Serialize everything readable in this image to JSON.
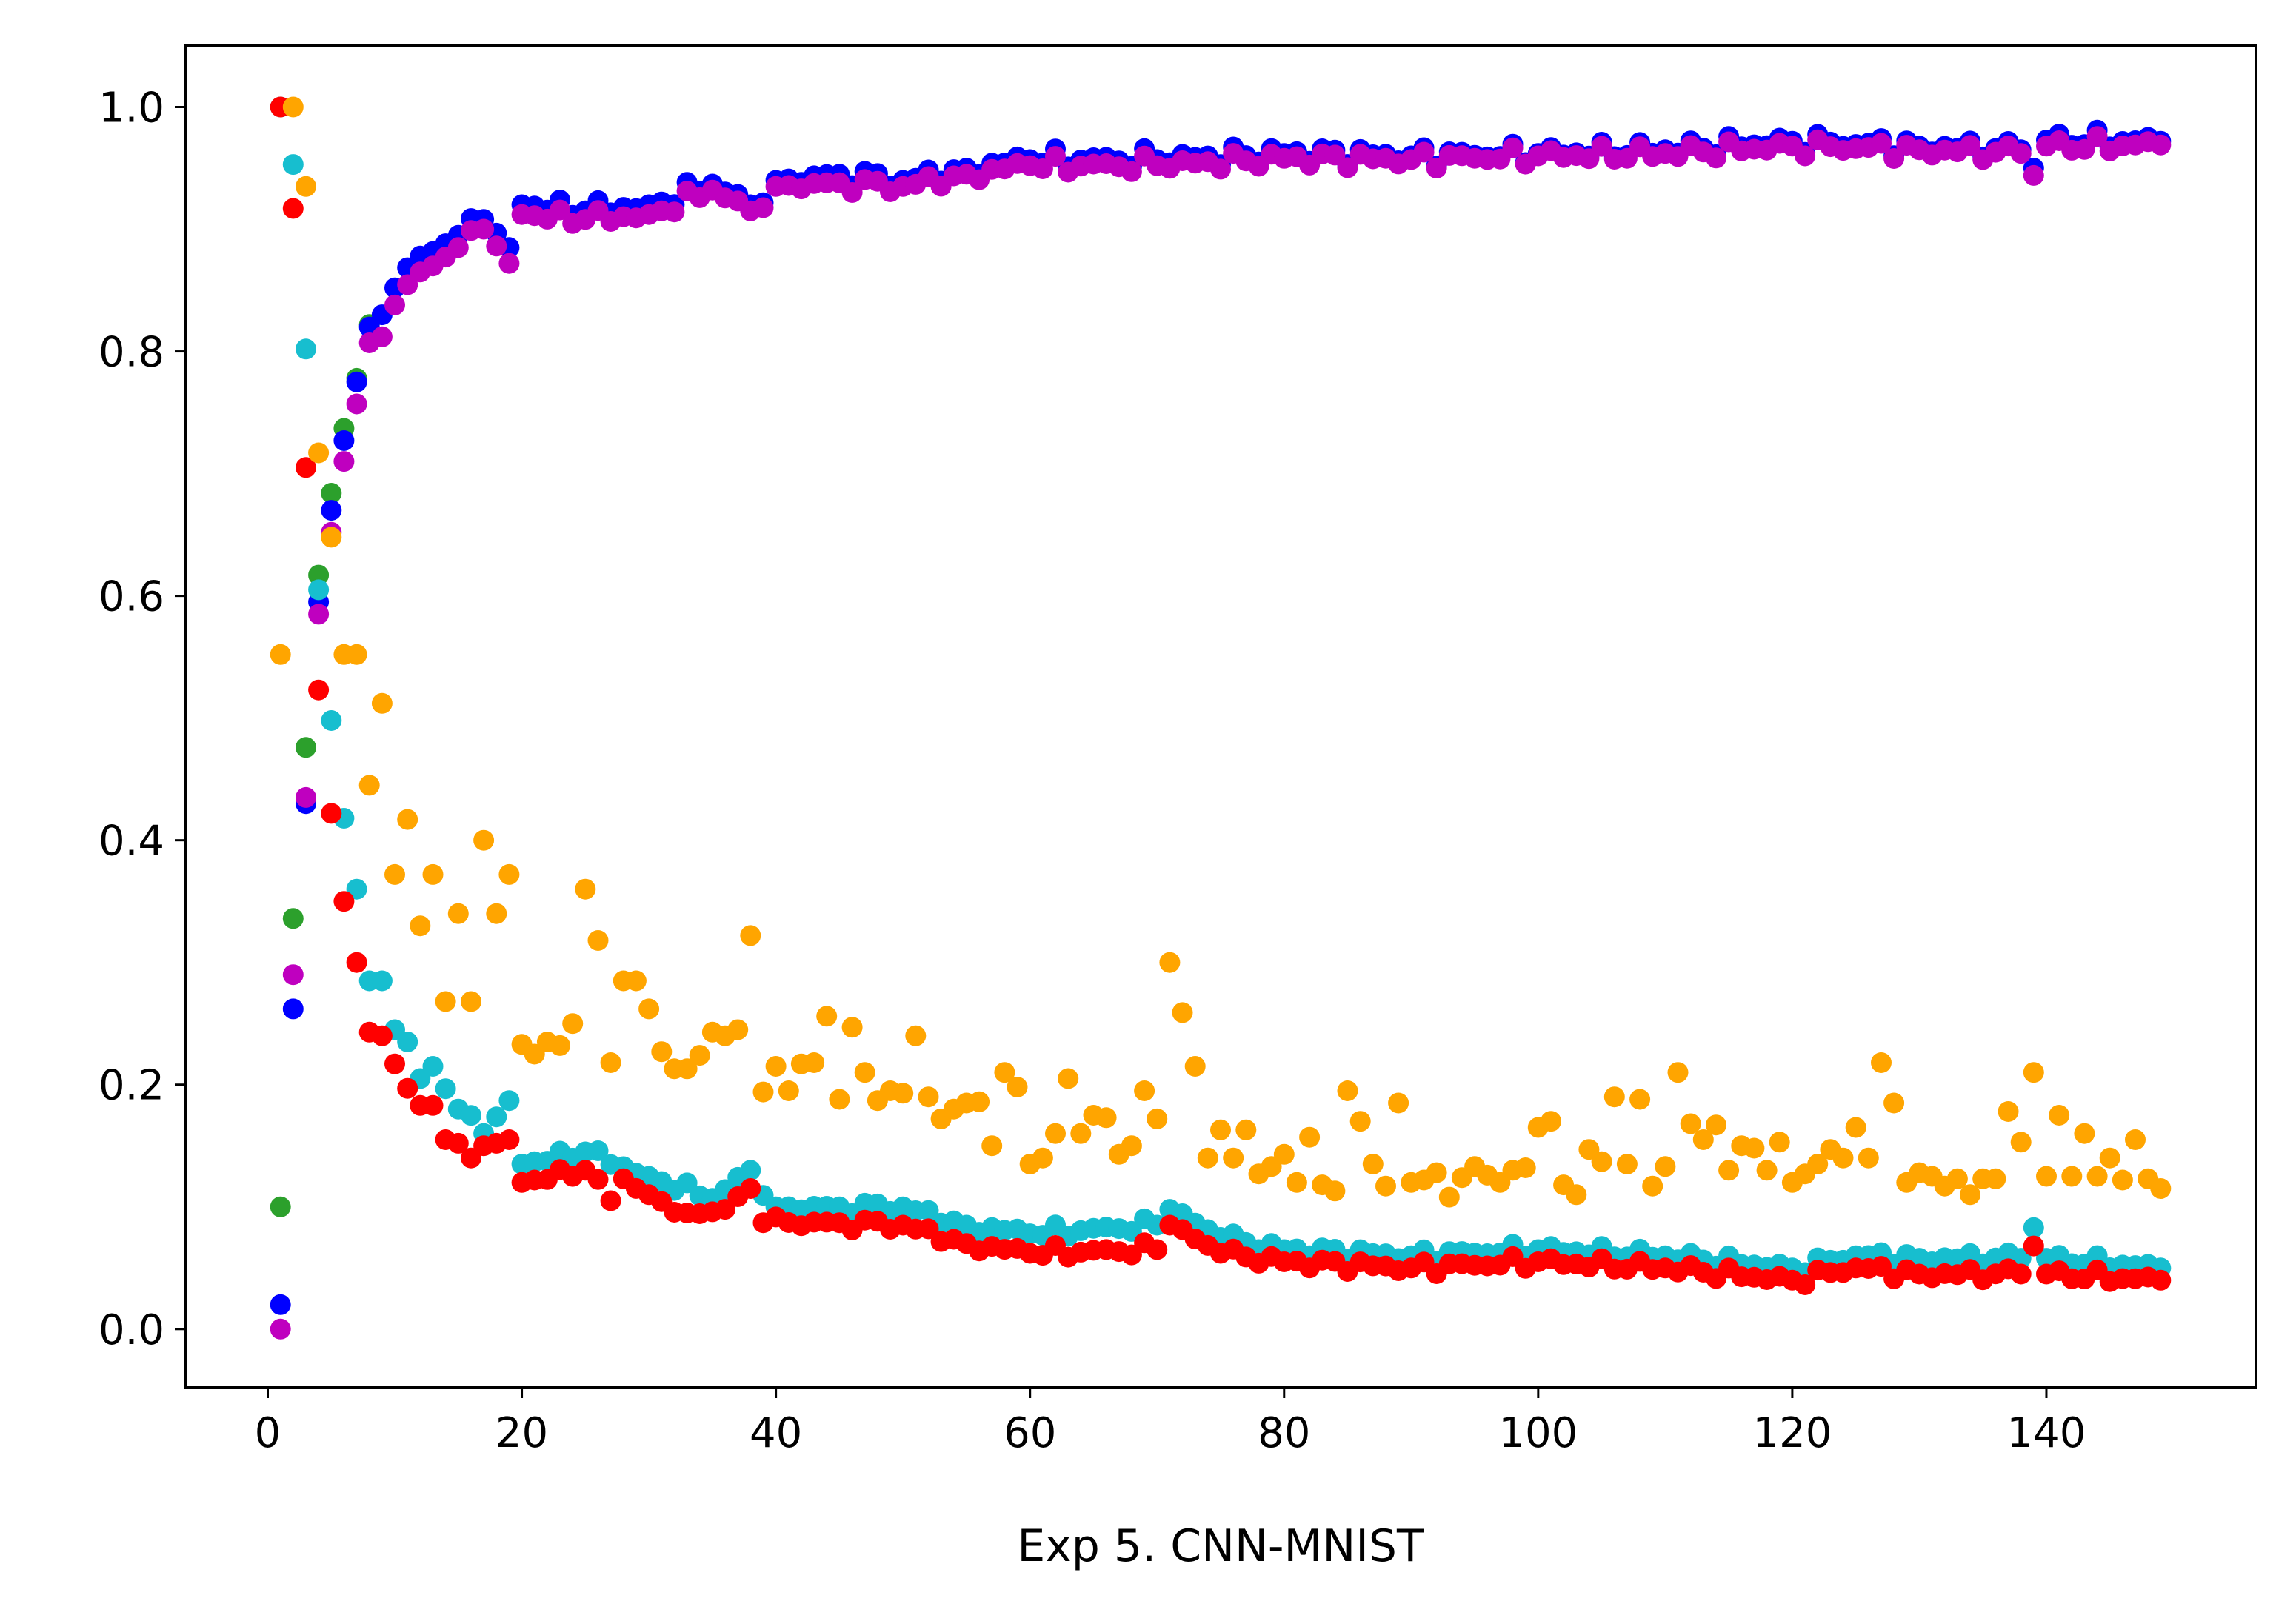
{
  "chart_data": {
    "type": "scatter",
    "title": "",
    "xlabel": "Exp 5. CNN-MNIST",
    "ylabel": "",
    "xlim": [
      -6.5,
      156.5
    ],
    "ylim": [
      -0.048,
      1.05
    ],
    "x_ticks": [
      0,
      20,
      40,
      60,
      80,
      100,
      120,
      140
    ],
    "y_ticks": [
      0.0,
      0.2,
      0.4,
      0.6,
      0.8,
      1.0
    ],
    "x_tick_labels": [
      "0",
      "20",
      "40",
      "60",
      "80",
      "100",
      "120",
      "140"
    ],
    "y_tick_labels": [
      "0.0",
      "0.2",
      "0.4",
      "0.6",
      "0.8",
      "1.0"
    ],
    "grid": false,
    "legend": false,
    "series": [
      {
        "color": "#2ca02c",
        "points": [
          [
            1,
            0.1
          ],
          [
            2,
            0.336
          ],
          [
            3,
            0.476
          ],
          [
            4,
            0.617
          ],
          [
            5,
            0.684
          ],
          [
            6,
            0.737
          ],
          [
            7,
            0.778
          ],
          [
            8,
            0.822
          ]
        ]
      },
      {
        "color": "#0000ff",
        "anchors": [
          [
            1,
            0.02
          ],
          [
            2,
            0.262
          ],
          [
            3,
            0.43
          ],
          [
            4,
            0.595
          ],
          [
            5,
            0.67
          ],
          [
            6,
            0.727
          ],
          [
            7,
            0.775
          ],
          [
            8,
            0.82
          ],
          [
            9,
            0.83
          ],
          [
            10,
            0.852
          ],
          [
            12,
            0.878
          ],
          [
            15,
            0.895
          ],
          [
            17,
            0.908
          ],
          [
            19,
            0.885
          ],
          [
            20,
            0.92
          ],
          [
            25,
            0.915
          ],
          [
            30,
            0.92
          ],
          [
            35,
            0.937
          ],
          [
            38,
            0.92
          ],
          [
            40,
            0.94
          ],
          [
            45,
            0.945
          ],
          [
            50,
            0.94
          ],
          [
            55,
            0.95
          ],
          [
            60,
            0.957
          ],
          [
            70,
            0.957
          ],
          [
            80,
            0.962
          ],
          [
            90,
            0.96
          ],
          [
            100,
            0.962
          ],
          [
            110,
            0.965
          ],
          [
            120,
            0.972
          ],
          [
            130,
            0.968
          ],
          [
            138,
            0.965
          ],
          [
            139,
            0.95
          ],
          [
            140,
            0.973
          ],
          [
            149,
            0.972
          ]
        ],
        "jitter": 0.009
      },
      {
        "color": "#bf00bf",
        "anchors": [
          [
            1,
            0.0
          ],
          [
            2,
            0.29
          ],
          [
            3,
            0.435
          ],
          [
            4,
            0.585
          ],
          [
            5,
            0.652
          ],
          [
            6,
            0.71
          ],
          [
            7,
            0.757
          ],
          [
            8,
            0.807
          ],
          [
            9,
            0.812
          ],
          [
            10,
            0.838
          ],
          [
            12,
            0.865
          ],
          [
            15,
            0.885
          ],
          [
            17,
            0.9
          ],
          [
            19,
            0.872
          ],
          [
            20,
            0.912
          ],
          [
            25,
            0.908
          ],
          [
            30,
            0.912
          ],
          [
            35,
            0.932
          ],
          [
            38,
            0.915
          ],
          [
            40,
            0.935
          ],
          [
            45,
            0.938
          ],
          [
            50,
            0.935
          ],
          [
            55,
            0.945
          ],
          [
            60,
            0.952
          ],
          [
            70,
            0.952
          ],
          [
            80,
            0.958
          ],
          [
            90,
            0.957
          ],
          [
            100,
            0.96
          ],
          [
            110,
            0.962
          ],
          [
            120,
            0.968
          ],
          [
            130,
            0.965
          ],
          [
            138,
            0.962
          ],
          [
            139,
            0.944
          ],
          [
            140,
            0.968
          ],
          [
            149,
            0.969
          ]
        ],
        "jitter": 0.008
      },
      {
        "color": "#17becf",
        "anchors": [
          [
            1,
            1.0
          ],
          [
            2,
            0.953
          ],
          [
            3,
            0.802
          ],
          [
            4,
            0.605
          ],
          [
            5,
            0.498
          ],
          [
            6,
            0.418
          ],
          [
            7,
            0.36
          ],
          [
            8,
            0.285
          ],
          [
            9,
            0.285
          ],
          [
            10,
            0.245
          ],
          [
            11,
            0.235
          ],
          [
            12,
            0.205
          ],
          [
            13,
            0.215
          ],
          [
            15,
            0.18
          ],
          [
            17,
            0.16
          ],
          [
            19,
            0.187
          ],
          [
            20,
            0.135
          ],
          [
            25,
            0.145
          ],
          [
            30,
            0.125
          ],
          [
            35,
            0.107
          ],
          [
            38,
            0.13
          ],
          [
            40,
            0.1
          ],
          [
            45,
            0.1
          ],
          [
            50,
            0.1
          ],
          [
            55,
            0.085
          ],
          [
            60,
            0.078
          ],
          [
            70,
            0.085
          ],
          [
            71,
            0.098
          ],
          [
            75,
            0.075
          ],
          [
            80,
            0.065
          ],
          [
            90,
            0.06
          ],
          [
            100,
            0.065
          ],
          [
            110,
            0.06
          ],
          [
            120,
            0.05
          ],
          [
            125,
            0.06
          ],
          [
            130,
            0.058
          ],
          [
            138,
            0.058
          ],
          [
            139,
            0.083
          ],
          [
            140,
            0.058
          ],
          [
            149,
            0.05
          ]
        ],
        "jitter": 0.006
      },
      {
        "color": "#ff0000",
        "anchors": [
          [
            1,
            1.0
          ],
          [
            2,
            0.917
          ],
          [
            3,
            0.705
          ],
          [
            4,
            0.523
          ],
          [
            5,
            0.422
          ],
          [
            6,
            0.35
          ],
          [
            7,
            0.3
          ],
          [
            8,
            0.243
          ],
          [
            9,
            0.24
          ],
          [
            10,
            0.217
          ],
          [
            11,
            0.197
          ],
          [
            12,
            0.183
          ],
          [
            13,
            0.183
          ],
          [
            14,
            0.155
          ],
          [
            15,
            0.152
          ],
          [
            16,
            0.14
          ],
          [
            17,
            0.15
          ],
          [
            18,
            0.152
          ],
          [
            19,
            0.155
          ],
          [
            20,
            0.12
          ],
          [
            25,
            0.13
          ],
          [
            27,
            0.105
          ],
          [
            28,
            0.123
          ],
          [
            30,
            0.11
          ],
          [
            33,
            0.095
          ],
          [
            36,
            0.098
          ],
          [
            38,
            0.115
          ],
          [
            39,
            0.087
          ],
          [
            45,
            0.087
          ],
          [
            50,
            0.085
          ],
          [
            55,
            0.07
          ],
          [
            60,
            0.062
          ],
          [
            70,
            0.065
          ],
          [
            71,
            0.085
          ],
          [
            75,
            0.062
          ],
          [
            80,
            0.055
          ],
          [
            90,
            0.05
          ],
          [
            100,
            0.055
          ],
          [
            110,
            0.05
          ],
          [
            120,
            0.04
          ],
          [
            125,
            0.05
          ],
          [
            130,
            0.045
          ],
          [
            138,
            0.045
          ],
          [
            139,
            0.068
          ],
          [
            140,
            0.045
          ],
          [
            149,
            0.04
          ]
        ],
        "jitter": 0.006
      },
      {
        "color": "#ffa500",
        "points": [
          [
            1,
            0.552
          ],
          [
            2,
            1.0
          ],
          [
            3,
            0.935
          ],
          [
            4,
            0.717
          ],
          [
            5,
            0.648
          ],
          [
            6,
            0.552
          ],
          [
            7,
            0.552
          ],
          [
            8,
            0.445
          ],
          [
            9,
            0.512
          ],
          [
            10,
            0.372
          ],
          [
            11,
            0.417
          ],
          [
            12,
            0.33
          ],
          [
            13,
            0.372
          ],
          [
            14,
            0.268
          ],
          [
            15,
            0.34
          ],
          [
            16,
            0.268
          ],
          [
            17,
            0.4
          ],
          [
            18,
            0.34
          ],
          [
            19,
            0.372
          ],
          [
            20,
            0.233
          ],
          [
            21,
            0.225
          ],
          [
            22,
            0.235
          ],
          [
            23,
            0.232
          ],
          [
            24,
            0.25
          ],
          [
            25,
            0.36
          ],
          [
            26,
            0.318
          ],
          [
            27,
            0.218
          ],
          [
            28,
            0.285
          ],
          [
            29,
            0.285
          ],
          [
            30,
            0.262
          ],
          [
            31,
            0.227
          ],
          [
            32,
            0.213
          ],
          [
            33,
            0.213
          ],
          [
            34,
            0.224
          ],
          [
            35,
            0.243
          ],
          [
            36,
            0.24
          ],
          [
            37,
            0.245
          ],
          [
            38,
            0.322
          ],
          [
            39,
            0.194
          ],
          [
            40,
            0.215
          ],
          [
            41,
            0.195
          ],
          [
            42,
            0.217
          ],
          [
            43,
            0.218
          ],
          [
            44,
            0.256
          ],
          [
            45,
            0.188
          ],
          [
            46,
            0.247
          ],
          [
            47,
            0.21
          ],
          [
            48,
            0.187
          ],
          [
            49,
            0.195
          ],
          [
            50,
            0.193
          ],
          [
            51,
            0.24
          ],
          [
            52,
            0.19
          ],
          [
            53,
            0.172
          ],
          [
            54,
            0.18
          ],
          [
            55,
            0.185
          ],
          [
            56,
            0.186
          ],
          [
            57,
            0.15
          ],
          [
            58,
            0.21
          ],
          [
            59,
            0.198
          ],
          [
            60,
            0.135
          ],
          [
            61,
            0.14
          ],
          [
            62,
            0.16
          ],
          [
            63,
            0.205
          ],
          [
            64,
            0.16
          ],
          [
            65,
            0.175
          ],
          [
            66,
            0.173
          ],
          [
            67,
            0.143
          ],
          [
            68,
            0.15
          ],
          [
            69,
            0.195
          ],
          [
            70,
            0.172
          ],
          [
            71,
            0.3
          ],
          [
            72,
            0.259
          ],
          [
            73,
            0.215
          ],
          [
            74,
            0.14
          ],
          [
            75,
            0.163
          ],
          [
            76,
            0.14
          ],
          [
            77,
            0.163
          ],
          [
            78,
            0.127
          ],
          [
            79,
            0.133
          ],
          [
            80,
            0.143
          ],
          [
            81,
            0.12
          ],
          [
            82,
            0.157
          ],
          [
            83,
            0.118
          ],
          [
            84,
            0.113
          ],
          [
            85,
            0.195
          ],
          [
            86,
            0.17
          ],
          [
            87,
            0.135
          ],
          [
            88,
            0.117
          ],
          [
            89,
            0.185
          ],
          [
            90,
            0.12
          ],
          [
            91,
            0.122
          ],
          [
            92,
            0.128
          ],
          [
            93,
            0.108
          ],
          [
            94,
            0.124
          ],
          [
            95,
            0.133
          ],
          [
            96,
            0.126
          ],
          [
            97,
            0.12
          ],
          [
            98,
            0.13
          ],
          [
            99,
            0.132
          ],
          [
            100,
            0.165
          ],
          [
            101,
            0.17
          ],
          [
            102,
            0.118
          ],
          [
            103,
            0.11
          ],
          [
            104,
            0.147
          ],
          [
            105,
            0.137
          ],
          [
            106,
            0.19
          ],
          [
            107,
            0.135
          ],
          [
            108,
            0.188
          ],
          [
            109,
            0.117
          ],
          [
            110,
            0.133
          ],
          [
            111,
            0.21
          ],
          [
            112,
            0.168
          ],
          [
            113,
            0.155
          ],
          [
            114,
            0.167
          ],
          [
            115,
            0.13
          ],
          [
            116,
            0.15
          ],
          [
            117,
            0.148
          ],
          [
            118,
            0.13
          ],
          [
            119,
            0.153
          ],
          [
            120,
            0.12
          ],
          [
            121,
            0.127
          ],
          [
            122,
            0.135
          ],
          [
            123,
            0.147
          ],
          [
            124,
            0.14
          ],
          [
            125,
            0.165
          ],
          [
            126,
            0.14
          ],
          [
            127,
            0.218
          ],
          [
            128,
            0.185
          ],
          [
            129,
            0.12
          ],
          [
            130,
            0.128
          ],
          [
            131,
            0.125
          ],
          [
            132,
            0.117
          ],
          [
            133,
            0.123
          ],
          [
            134,
            0.11
          ],
          [
            135,
            0.123
          ],
          [
            136,
            0.123
          ],
          [
            137,
            0.178
          ],
          [
            138,
            0.153
          ],
          [
            139,
            0.21
          ],
          [
            140,
            0.125
          ],
          [
            141,
            0.175
          ],
          [
            142,
            0.125
          ],
          [
            143,
            0.16
          ],
          [
            144,
            0.125
          ],
          [
            145,
            0.14
          ],
          [
            146,
            0.122
          ],
          [
            147,
            0.155
          ],
          [
            148,
            0.123
          ],
          [
            149,
            0.115
          ]
        ]
      }
    ]
  }
}
